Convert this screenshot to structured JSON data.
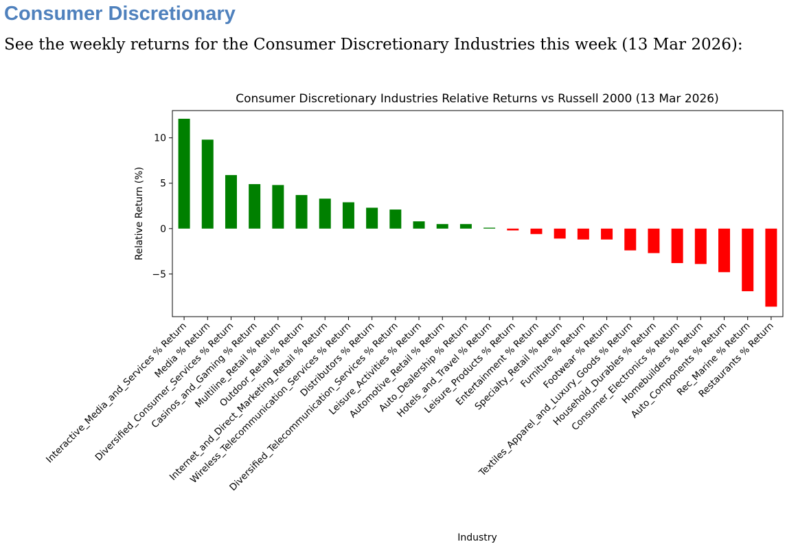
{
  "heading": "Consumer Discretionary",
  "intro": "See the weekly returns for the Consumer Discretionary Industries this week (13 Mar 2026):",
  "colors": {
    "heading": "#4f81bd",
    "positive": "#008000",
    "negative": "#ff0000"
  },
  "chart_data": {
    "type": "bar",
    "title": "Consumer Discretionary Industries Relative Returns vs Russell 2000 (13 Mar 2026)",
    "xlabel": "Industry",
    "ylabel": "Relative Return (%)",
    "ylim": [
      -9.7,
      13.0
    ],
    "yticks": [
      -5,
      0,
      5,
      10
    ],
    "grid": false,
    "categories": [
      "Interactive_Media_and_Services % Return",
      "Media % Return",
      "Diversified_Consumer_Services % Return",
      "Casinos_and_Gaming % Return",
      "Multiline_Retail % Return",
      "Outdoor_Retail % Return",
      "Internet_and_Direct_Marketing_Retail % Return",
      "Wireless_Telecommunication_Services % Return",
      "Distributors % Return",
      "Diversified_Telecommunication_Services % Return",
      "Leisure_Activities % Return",
      "Automotive_Retail % Return",
      "Auto_Dealership % Return",
      "Hotels_and_Travel % Return",
      "Leisure_Products % Return",
      "Entertainment % Return",
      "Specialty_Retail % Return",
      "Furniture % Return",
      "Footwear % Return",
      "Textiles_Apparel_and_Luxury_Goods % Return",
      "Household_Durables % Return",
      "Consumer_Electronics % Return",
      "Homebuilders % Return",
      "Auto_Components % Return",
      "Rec_Marine % Return",
      "Restaurants % Return"
    ],
    "values": [
      12.1,
      9.8,
      5.9,
      4.9,
      4.8,
      3.7,
      3.3,
      2.9,
      2.3,
      2.1,
      0.8,
      0.5,
      0.5,
      0.1,
      -0.2,
      -0.6,
      -1.1,
      -1.2,
      -1.2,
      -2.4,
      -2.7,
      -3.8,
      -3.9,
      -4.8,
      -6.9,
      -8.6
    ]
  }
}
